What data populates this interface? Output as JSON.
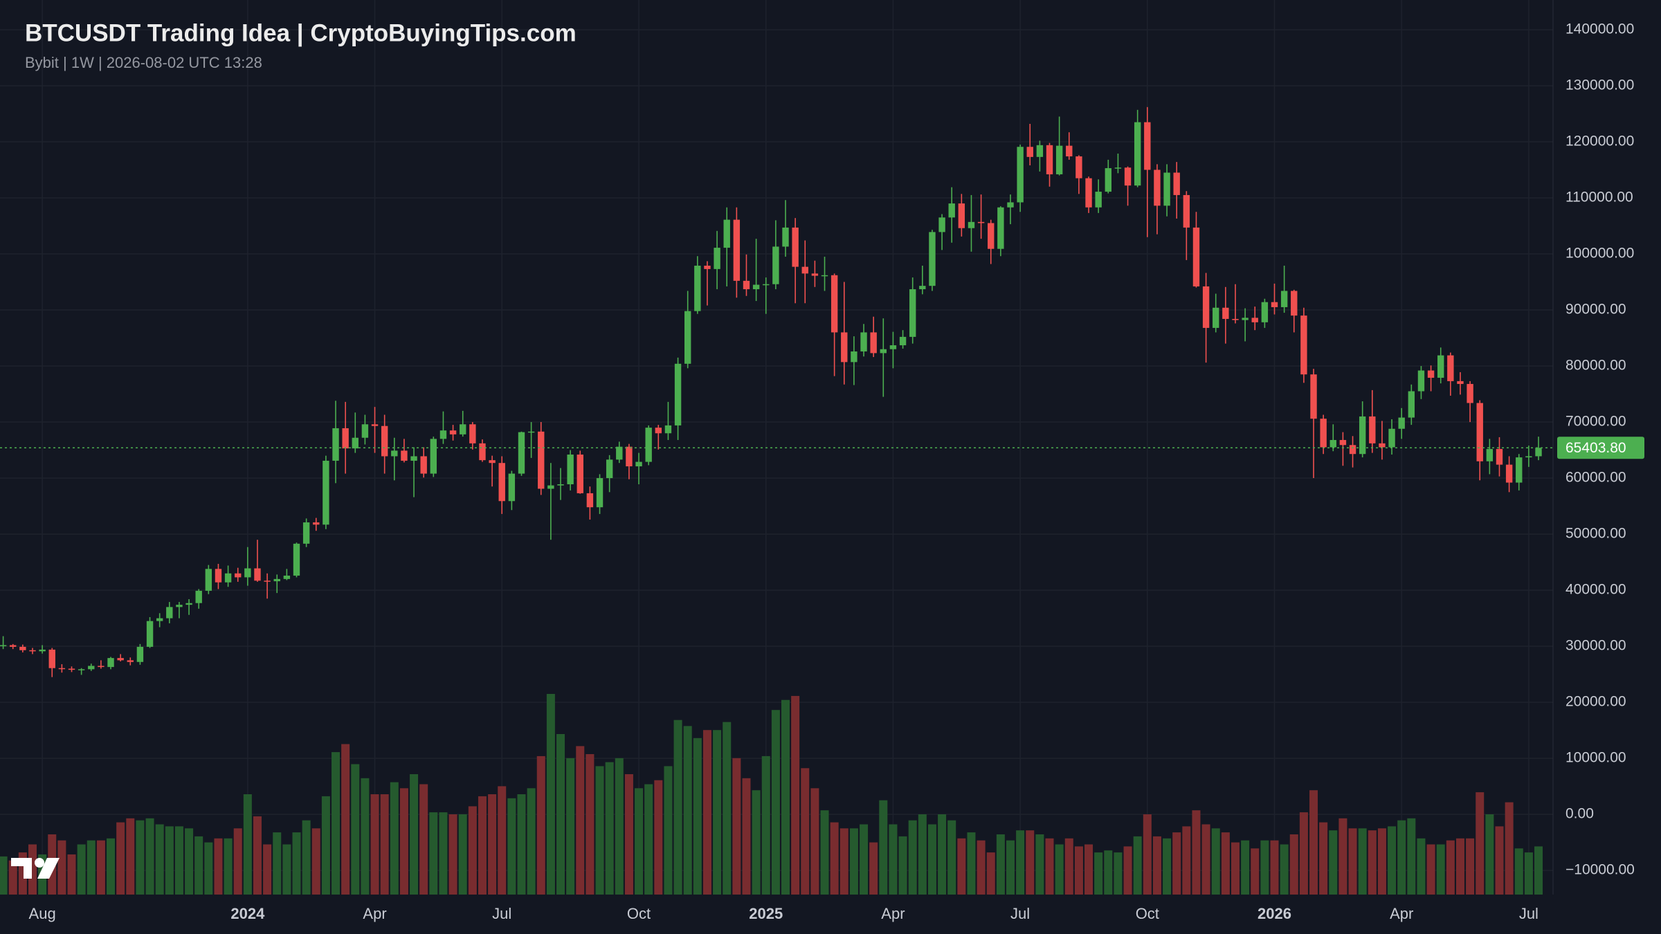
{
  "chart_data": {
    "type": "candlestick",
    "title": "BTCUSDT Trading Idea | CryptoBuyingTips.com",
    "subtitle": "Bybit | 1W | 2026-08-02 UTC 13:28",
    "categories": [
      null,
      null,
      null,
      null,
      "Aug",
      null,
      null,
      null,
      null,
      null,
      null,
      null,
      null,
      null,
      null,
      null,
      null,
      null,
      null,
      null,
      null,
      null,
      null,
      null,
      null,
      "2024",
      null,
      null,
      null,
      null,
      null,
      null,
      null,
      null,
      null,
      null,
      null,
      null,
      "Apr",
      null,
      null,
      null,
      null,
      null,
      null,
      null,
      null,
      null,
      null,
      null,
      null,
      "Jul",
      null,
      null,
      null,
      null,
      null,
      null,
      null,
      null,
      null,
      null,
      null,
      null,
      null,
      "Oct",
      null,
      null,
      null,
      null,
      null,
      null,
      null,
      null,
      null,
      null,
      null,
      null,
      "2025",
      null,
      null,
      null,
      null,
      null,
      null,
      null,
      null,
      null,
      null,
      null,
      null,
      "Apr",
      null,
      null,
      null,
      null,
      null,
      null,
      null,
      null,
      null,
      null,
      null,
      null,
      "Jul",
      null,
      null,
      null,
      null,
      null,
      null,
      null,
      null,
      null,
      null,
      null,
      null,
      "Oct",
      null,
      null,
      null,
      null,
      null,
      null,
      null,
      null,
      null,
      null,
      null,
      null,
      "2026",
      null,
      null,
      null,
      null,
      null,
      null,
      null,
      null,
      null,
      null,
      null,
      null,
      "Apr",
      null,
      null,
      null,
      null,
      null,
      null,
      null,
      null,
      null,
      null,
      null,
      null,
      "Jul",
      null
    ],
    "open": [
      30000,
      30200,
      29900,
      29300,
      29100,
      29400,
      26100,
      26000,
      25800,
      25900,
      26500,
      26300,
      27900,
      27500,
      27200,
      29900,
      34500,
      35000,
      37000,
      37400,
      37700,
      39900,
      43800,
      41400,
      43000,
      42300,
      43900,
      41700,
      41600,
      42000,
      42600,
      48300,
      52100,
      51700,
      63100,
      68900,
      65300,
      67200,
      69600,
      69300,
      63900,
      64900,
      63100,
      63900,
      60800,
      67000,
      68500,
      67800,
      69600,
      66200,
      63200,
      62700,
      55900,
      60800,
      68200,
      68300,
      58100,
      58700,
      58900,
      64200,
      57300,
      54800,
      60000,
      63300,
      65600,
      62100,
      62900,
      69000,
      68000,
      69400,
      80400,
      89800,
      97900,
      97300,
      101100,
      106100,
      95200,
      93700,
      94500,
      94600,
      101300,
      104700,
      97700,
      96500,
      96100,
      96200,
      86000,
      80700,
      82600,
      86000,
      82300,
      83000,
      83700,
      85200,
      93700,
      94300,
      103900,
      106500,
      109000,
      104600,
      105700,
      105500,
      100900,
      108300,
      109200,
      119100,
      117300,
      119400,
      114200,
      119300,
      117400,
      113500,
      108300,
      111100,
      115300,
      115400,
      112200,
      123500,
      115000,
      108600,
      114500,
      110500,
      104700,
      94200,
      86800,
      90400,
      88400,
      88200,
      88600,
      87800,
      91400,
      90500,
      93400,
      89000,
      78500,
      70600,
      65500,
      66800,
      65900,
      64300,
      71000,
      66200,
      65500,
      68800,
      70800,
      75500,
      79200,
      77900,
      81900,
      77300,
      76800,
      73400,
      63000,
      65200,
      62400,
      59200,
      63700,
      63900
    ],
    "high": [
      31800,
      30400,
      30300,
      29700,
      30200,
      29700,
      26800,
      26400,
      26100,
      26900,
      27500,
      28100,
      28600,
      28000,
      30400,
      35200,
      35900,
      37900,
      37900,
      38400,
      40200,
      44500,
      44700,
      44400,
      44000,
      47700,
      49000,
      43000,
      42800,
      43800,
      48500,
      52800,
      52900,
      64000,
      73800,
      73600,
      71700,
      71300,
      72700,
      71300,
      67200,
      67000,
      65500,
      65500,
      67400,
      71900,
      69500,
      72000,
      70000,
      66900,
      64000,
      63900,
      61300,
      68300,
      70000,
      70000,
      62700,
      61800,
      65000,
      64900,
      58500,
      60700,
      64100,
      66500,
      66100,
      64500,
      69400,
      69500,
      73600,
      81500,
      93400,
      99600,
      98700,
      104100,
      108300,
      108300,
      99900,
      102700,
      95800,
      106000,
      109600,
      106400,
      102400,
      98800,
      99500,
      96500,
      95000,
      85300,
      87500,
      88800,
      88500,
      86100,
      86400,
      95800,
      97900,
      104300,
      107100,
      111900,
      110700,
      110500,
      110600,
      106100,
      108500,
      110600,
      119500,
      123200,
      120200,
      119800,
      124500,
      121700,
      117600,
      113800,
      113300,
      116800,
      117900,
      115600,
      125700,
      126200,
      116000,
      116000,
      116400,
      111200,
      107500,
      96600,
      92900,
      94100,
      94600,
      90300,
      90600,
      92000,
      94700,
      97900,
      93600,
      90400,
      79500,
      71300,
      69600,
      68200,
      67500,
      73700,
      75700,
      70200,
      70500,
      72500,
      76700,
      80000,
      80100,
      83300,
      82400,
      78900,
      77300,
      73900,
      67000,
      67300,
      63900,
      64300,
      65800,
      67400
    ],
    "low": [
      29500,
      29500,
      28900,
      28600,
      28700,
      24500,
      25300,
      25400,
      24900,
      25600,
      26000,
      25900,
      27300,
      26600,
      26700,
      29700,
      33400,
      34100,
      35000,
      35600,
      36700,
      39300,
      40200,
      40600,
      41500,
      40800,
      41500,
      38500,
      39500,
      41800,
      42300,
      47700,
      50600,
      50900,
      59100,
      60800,
      64500,
      66000,
      64500,
      60800,
      59600,
      62800,
      56600,
      60100,
      60200,
      66100,
      66700,
      67400,
      65100,
      62900,
      58500,
      53600,
      54300,
      60400,
      63600,
      57000,
      49000,
      56100,
      57800,
      57200,
      52600,
      53600,
      57500,
      62700,
      59800,
      58900,
      62300,
      65100,
      66800,
      66800,
      79600,
      89300,
      90800,
      93700,
      94200,
      92200,
      92500,
      91600,
      89300,
      93700,
      99500,
      91200,
      91200,
      94100,
      93400,
      78200,
      76700,
      76600,
      81700,
      81600,
      74500,
      79600,
      83100,
      84000,
      92800,
      93400,
      100700,
      102000,
      103100,
      100400,
      102700,
      98200,
      99600,
      105300,
      107500,
      115800,
      114700,
      112000,
      114000,
      116800,
      110700,
      107300,
      107300,
      110800,
      114400,
      108600,
      111900,
      103000,
      103500,
      106700,
      106300,
      98900,
      94000,
      80600,
      86000,
      84000,
      87600,
      84400,
      86400,
      86800,
      89200,
      89500,
      86000,
      77000,
      60000,
      64300,
      64800,
      62200,
      61900,
      63700,
      64500,
      63300,
      64200,
      67000,
      69500,
      74100,
      75500,
      76900,
      74700,
      74900,
      70000,
      59600,
      60700,
      60300,
      57500,
      57800,
      62000,
      63200
    ],
    "close": [
      30200,
      29900,
      29300,
      29100,
      29400,
      26100,
      26000,
      25800,
      25900,
      26500,
      26300,
      27900,
      27500,
      27200,
      29900,
      34500,
      35000,
      37000,
      37400,
      37700,
      39900,
      43800,
      41400,
      43000,
      42300,
      43900,
      41700,
      41600,
      42000,
      42600,
      48300,
      52100,
      51700,
      63100,
      68900,
      65300,
      67200,
      69600,
      69300,
      63900,
      64900,
      63100,
      63900,
      60800,
      67000,
      68500,
      67800,
      69600,
      66200,
      63200,
      62700,
      55900,
      60800,
      68200,
      68300,
      58100,
      58700,
      58900,
      64200,
      57300,
      54800,
      60000,
      63300,
      65600,
      62100,
      62900,
      69000,
      68000,
      69400,
      80400,
      89800,
      97900,
      97300,
      101100,
      106100,
      95200,
      93700,
      94500,
      94600,
      101300,
      104700,
      97700,
      96500,
      96100,
      96200,
      86000,
      80700,
      82600,
      86000,
      82300,
      83000,
      83700,
      85200,
      93700,
      94300,
      103900,
      106500,
      109000,
      104600,
      105700,
      105500,
      100900,
      108300,
      109200,
      119100,
      117300,
      119400,
      114200,
      119300,
      117400,
      113500,
      108300,
      111100,
      115300,
      115400,
      112200,
      123500,
      115000,
      108600,
      114500,
      110500,
      104700,
      94200,
      86800,
      90400,
      88400,
      88200,
      88600,
      87800,
      91400,
      90500,
      93400,
      89000,
      78500,
      70600,
      65500,
      66800,
      65900,
      64300,
      71000,
      66200,
      65500,
      68800,
      70800,
      75500,
      79200,
      77900,
      81900,
      77300,
      76800,
      73400,
      63000,
      65200,
      62400,
      59200,
      63700,
      63900,
      65403.8
    ],
    "volume": [
      19,
      17,
      21,
      25,
      20,
      30,
      27,
      20,
      25,
      27,
      27,
      28,
      36,
      38,
      37,
      38,
      35,
      34,
      34,
      33,
      29,
      26,
      28,
      28,
      33,
      50,
      39,
      25,
      31,
      25,
      31,
      37,
      33,
      49,
      71,
      75,
      65,
      58,
      50,
      50,
      56,
      53,
      60,
      55,
      41,
      41,
      40,
      40,
      44,
      49,
      50,
      54,
      48,
      50,
      53,
      69,
      100,
      80,
      68,
      74,
      70,
      64,
      66,
      68,
      60,
      53,
      55,
      57,
      64,
      87,
      84,
      78,
      82,
      82,
      86,
      68,
      58,
      52,
      69,
      92,
      97,
      99,
      63,
      53,
      42,
      36,
      33,
      33,
      35,
      26,
      47,
      35,
      29,
      37,
      40,
      35,
      40,
      37,
      28,
      31,
      27,
      21,
      30,
      27,
      32,
      32,
      30,
      28,
      25,
      28,
      24,
      25,
      21,
      22,
      21,
      24,
      29,
      40,
      29,
      28,
      31,
      34,
      42,
      35,
      33,
      31,
      26,
      27,
      23,
      27,
      27,
      25,
      30,
      41,
      52,
      36,
      32,
      38,
      33,
      33,
      32,
      33,
      34,
      37,
      38,
      28,
      25,
      25,
      27,
      28,
      28,
      51,
      40,
      34,
      46,
      23,
      21,
      24
    ],
    "ylim": [
      -14300,
      145300
    ],
    "yticks": [
      {
        "value": -10000,
        "label": "−10000.00"
      },
      {
        "value": 0,
        "label": "0.00"
      },
      {
        "value": 10000,
        "label": "10000.00"
      },
      {
        "value": 20000,
        "label": "20000.00"
      },
      {
        "value": 30000,
        "label": "30000.00"
      },
      {
        "value": 40000,
        "label": "40000.00"
      },
      {
        "value": 50000,
        "label": "50000.00"
      },
      {
        "value": 60000,
        "label": "60000.00"
      },
      {
        "value": 70000,
        "label": "70000.00"
      },
      {
        "value": 80000,
        "label": "80000.00"
      },
      {
        "value": 90000,
        "label": "90000.00"
      },
      {
        "value": 100000,
        "label": "100000.00"
      },
      {
        "value": 110000,
        "label": "110000.00"
      },
      {
        "value": 120000,
        "label": "120000.00"
      },
      {
        "value": 130000,
        "label": "130000.00"
      },
      {
        "value": 140000,
        "label": "140000.00"
      }
    ],
    "grid": true,
    "up_color": "#4caf50",
    "down_color": "#f0504f",
    "volume_up_color": "#255a2e",
    "volume_down_color": "#792c2f",
    "last_price": {
      "value": 65403.8,
      "label": "65403.80"
    }
  }
}
